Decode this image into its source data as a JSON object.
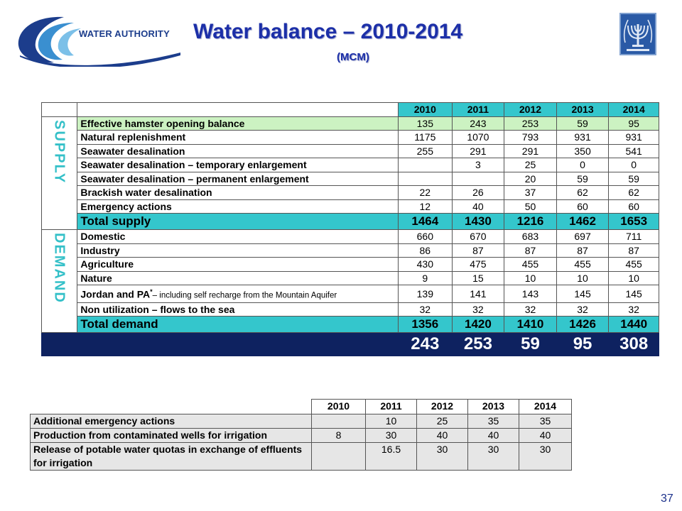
{
  "header": {
    "logo_text": "WATER AUTHORITY",
    "title": "Water balance – 2010-2014",
    "subtitle": "(MCM)"
  },
  "page_number": "37",
  "main_table": {
    "years": [
      "2010",
      "2011",
      "2012",
      "2013",
      "2014"
    ],
    "supply_label": "SUPPLY",
    "demand_label": "DEMAND",
    "supply_rows": [
      {
        "label": "Effective hamster opening balance",
        "values": [
          "135",
          "243",
          "253",
          "59",
          "95"
        ]
      },
      {
        "label": "Natural replenishment",
        "values": [
          "1175",
          "1070",
          "793",
          "931",
          "931"
        ]
      },
      {
        "label": "Seawater desalination",
        "values": [
          "255",
          "291",
          "291",
          "350",
          "541"
        ]
      },
      {
        "label": "Seawater desalination – temporary enlargement",
        "values": [
          "",
          "3",
          "25",
          "0",
          "0"
        ]
      },
      {
        "label": "Seawater desalination – permanent enlargement",
        "values": [
          "",
          "",
          "20",
          "59",
          "59"
        ]
      },
      {
        "label": "Brackish water desalination",
        "values": [
          "22",
          "26",
          "37",
          "62",
          "62"
        ]
      },
      {
        "label": "Emergency actions",
        "values": [
          "12",
          "40",
          "50",
          "60",
          "60"
        ]
      }
    ],
    "total_supply": {
      "label": "Total supply",
      "values": [
        "1464",
        "1430",
        "1216",
        "1462",
        "1653"
      ]
    },
    "demand_rows": [
      {
        "label": "Domestic",
        "values": [
          "660",
          "670",
          "683",
          "697",
          "711"
        ]
      },
      {
        "label": "Industry",
        "values": [
          "86",
          "87",
          "87",
          "87",
          "87"
        ]
      },
      {
        "label": "Agriculture",
        "values": [
          "430",
          "475",
          "455",
          "455",
          "455"
        ]
      },
      {
        "label": "Nature",
        "values": [
          "9",
          "15",
          "10",
          "10",
          "10"
        ]
      },
      {
        "label": "Jordan and PA",
        "label_sup": "*",
        "label_note": "– including self recharge from the Mountain Aquifer",
        "values": [
          "139",
          "141",
          "143",
          "145",
          "145"
        ]
      },
      {
        "label": "Non utilization – flows to the sea",
        "values": [
          "32",
          "32",
          "32",
          "32",
          "32"
        ]
      }
    ],
    "total_demand": {
      "label": "Total demand",
      "values": [
        "1356",
        "1420",
        "1410",
        "1426",
        "1440"
      ]
    },
    "balance_values": [
      "243",
      "253",
      "59",
      "95",
      "308"
    ]
  },
  "secondary_table": {
    "years": [
      "2010",
      "2011",
      "2012",
      "2013",
      "2014"
    ],
    "rows": [
      {
        "label": "Additional emergency actions",
        "values": [
          "",
          "10",
          "25",
          "35",
          "35"
        ]
      },
      {
        "label": "Production from contaminated wells for irrigation",
        "values": [
          "8",
          "30",
          "40",
          "40",
          "40"
        ]
      },
      {
        "label": "Release of potable water quotas in exchange of effluents for irrigation",
        "values": [
          "",
          "16.5",
          "30",
          "30",
          "30"
        ]
      }
    ]
  },
  "colors": {
    "title": "#1c2fa8",
    "teal_header": "#34c6cc",
    "green_row": "#ccf2c2",
    "balance_row": "#0e2260",
    "side_label": "#34c0c8"
  },
  "icons": [
    "water-authority-logo-icon",
    "state-emblem-icon"
  ]
}
